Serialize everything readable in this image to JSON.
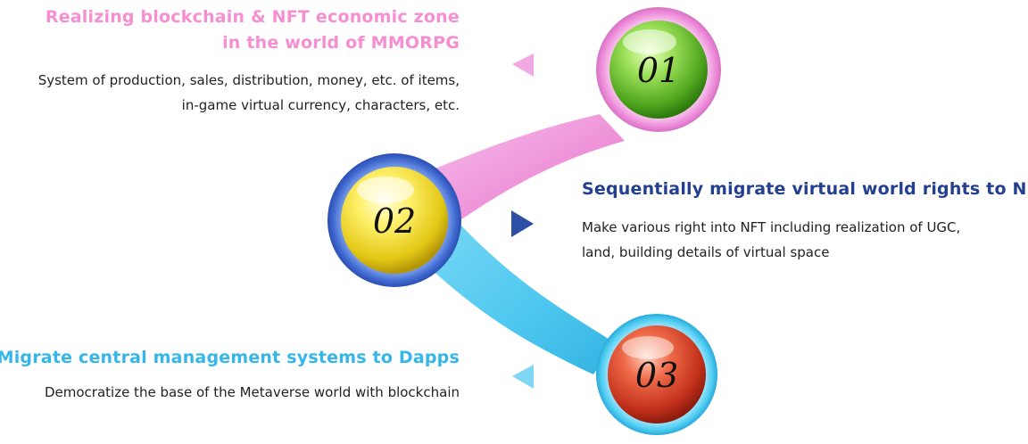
{
  "steps": [
    {
      "number": "01",
      "title_lines": [
        "Realizing blockchain & NFT economic zone",
        "in the world of MMORPG"
      ],
      "body_lines": [
        "System of production, sales, distribution, money, etc. of items,",
        "in-game virtual currency, characters, etc."
      ],
      "sphere_color": "green",
      "accent_color": "#f68ed2"
    },
    {
      "number": "02",
      "title_lines": [
        "Sequentially migrate virtual world rights to NFT"
      ],
      "body_lines": [
        "Make various right into NFT including realization of UGC,",
        "land, building details of virtual space"
      ],
      "sphere_color": "yellow",
      "accent_color": "#233f8f"
    },
    {
      "number": "03",
      "title_lines": [
        "Migrate central management systems to Dapps"
      ],
      "body_lines": [
        "Democratize the base of the Metaverse world with blockchain"
      ],
      "sphere_color": "red",
      "accent_color": "#34b6ea"
    }
  ],
  "colors": {
    "pink_connector": "#f3a6e3",
    "blue_connector": "#52cdf1",
    "dark_blue_ring": "#3a63c7"
  }
}
